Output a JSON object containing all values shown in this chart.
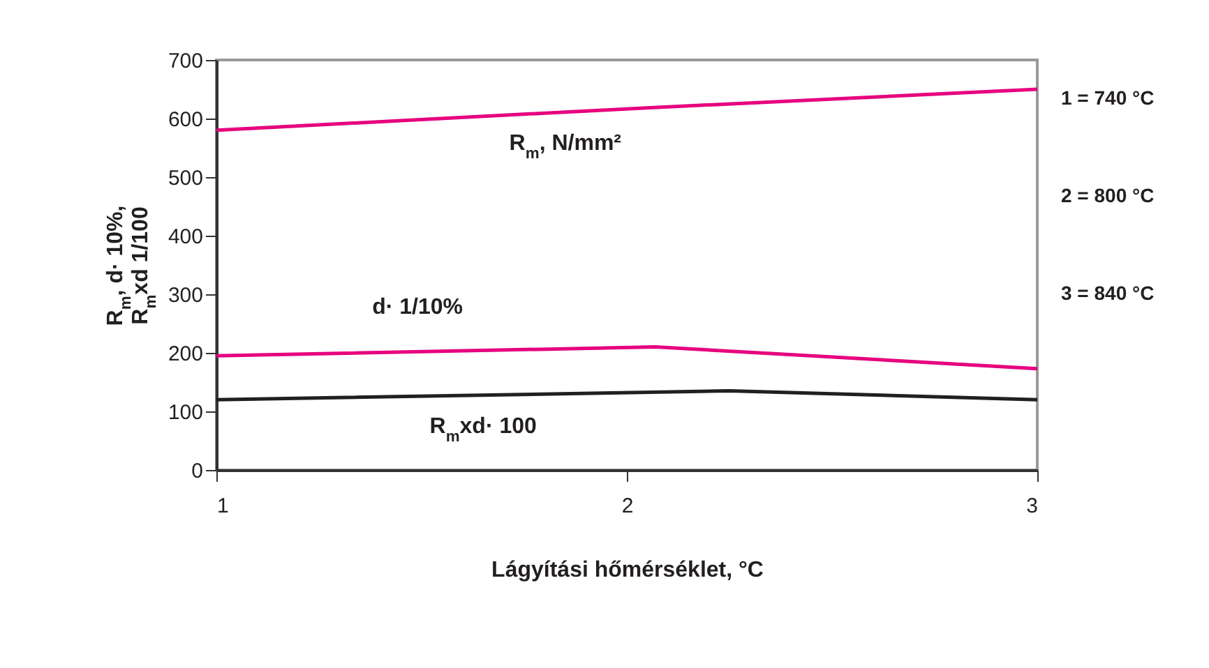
{
  "chart_data": {
    "type": "line",
    "xlabel": "Lágyítási hőmérséklet, °C",
    "ylabel": "R$_{m}$, d· 10%,\nR$_{m}$xd 1/100",
    "xlim": [
      1,
      3
    ],
    "xticks": [
      1,
      2,
      3
    ],
    "ylim": [
      0,
      700
    ],
    "yticks": [
      0,
      100,
      200,
      300,
      400,
      500,
      600,
      700
    ],
    "series": [
      {
        "name": "R$_{m}$, N/mm²",
        "color": "#e6007e",
        "x": [
          1,
          2.04,
          3
        ],
        "values": [
          580,
          618,
          650
        ]
      },
      {
        "name": "d· 1/10%",
        "color": "#e6007e",
        "x": [
          1,
          2.07,
          3
        ],
        "values": [
          195,
          210,
          173
        ]
      },
      {
        "name": "R$_{m}$xd· 100",
        "color": "#231f20",
        "x": [
          1,
          2.25,
          3
        ],
        "values": [
          120,
          135,
          120
        ]
      }
    ],
    "annotations": [
      "1 = 740 °C",
      "2 = 800 °C",
      "3 = 840 °C"
    ]
  }
}
